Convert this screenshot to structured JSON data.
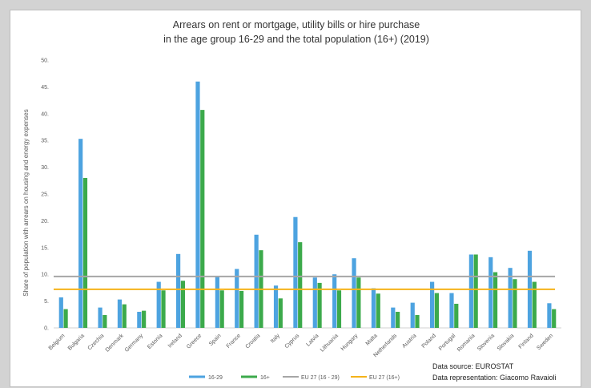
{
  "chart_data": {
    "type": "bar",
    "title_lines": [
      "Arrears on rent or mortgage, utility bills or hire purchase",
      "in the age group 16-29 and the total population (16+) (2019)"
    ],
    "ylabel": "Share of population with arrears on housing and energy expenses",
    "xlabel": "",
    "ylim": [
      0,
      50
    ],
    "y_ticks": [
      "0.",
      "5.",
      "10.",
      "15.",
      "20.",
      "25.",
      "30.",
      "35.",
      "40.",
      "45.",
      "50."
    ],
    "grid": false,
    "categories": [
      "Belgium",
      "Bulgaria",
      "Czechia",
      "Denmark",
      "Germany",
      "Estonia",
      "Ireland",
      "Greece",
      "Spain",
      "France",
      "Croatia",
      "Italy",
      "Cyprus",
      "Latvia",
      "Lithuania",
      "Hungary",
      "Malta",
      "Netherlands",
      "Austria",
      "Poland",
      "Portugal",
      "Romania",
      "Slovenia",
      "Slovakia",
      "Finland",
      "Sweden"
    ],
    "series": [
      {
        "name": "16-29",
        "color": "#4da3e0",
        "values": [
          5.7,
          35.3,
          3.8,
          5.3,
          3.0,
          8.6,
          13.8,
          46.0,
          9.5,
          11.0,
          17.4,
          7.9,
          20.7,
          9.4,
          10.0,
          13.0,
          7.4,
          3.8,
          4.7,
          8.6,
          6.5,
          13.7,
          13.2,
          11.2,
          14.4,
          4.6
        ]
      },
      {
        "name": "16+",
        "color": "#3caa4b",
        "values": [
          3.5,
          28.0,
          2.4,
          4.4,
          3.2,
          7.0,
          8.8,
          40.7,
          7.0,
          6.9,
          14.5,
          5.5,
          16.0,
          8.4,
          7.0,
          9.4,
          6.4,
          3.0,
          2.4,
          6.5,
          4.5,
          13.7,
          10.4,
          9.1,
          8.6,
          3.5
        ]
      }
    ],
    "reference_lines": [
      {
        "name": "EU 27  (16 - 29)",
        "color": "#a6a6a6",
        "value": 9.6
      },
      {
        "name": "EU 27  (16+)",
        "color": "#f5b31a",
        "value": 7.2
      }
    ],
    "legend_position": "bottom",
    "annotations": [
      "Data source: EUROSTAT",
      "Data representation: Giacomo Ravaioli"
    ]
  }
}
